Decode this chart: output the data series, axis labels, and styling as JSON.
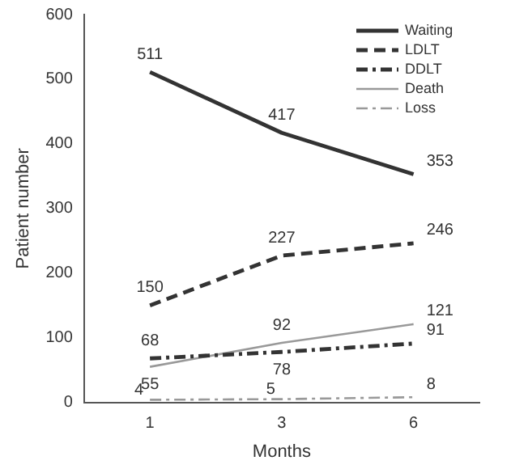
{
  "chart_data": {
    "type": "line",
    "xlabel": "Months",
    "ylabel": "Patient number",
    "categories": [
      "1",
      "3",
      "6"
    ],
    "ylim": [
      0,
      600
    ],
    "yticks": [
      0,
      100,
      200,
      300,
      400,
      500,
      600
    ],
    "grid": false,
    "legend": "top right",
    "marker": "none",
    "data_labels": true,
    "series": [
      {
        "name": "Waiting",
        "color": "#333333",
        "line_style": "solid",
        "values": [
          511,
          417,
          353
        ]
      },
      {
        "name": "LDLT",
        "color": "#333333",
        "line_style": "dashed",
        "values": [
          150,
          227,
          246
        ]
      },
      {
        "name": "DDLT",
        "color": "#333333",
        "line_style": "dashdot",
        "values": [
          68,
          78,
          91
        ]
      },
      {
        "name": "Death",
        "color": "#999999",
        "line_style": "solid",
        "values": [
          55,
          92,
          121
        ]
      },
      {
        "name": "Loss",
        "color": "#999999",
        "line_style": "dashdot",
        "values": [
          4,
          5,
          8
        ]
      }
    ]
  }
}
